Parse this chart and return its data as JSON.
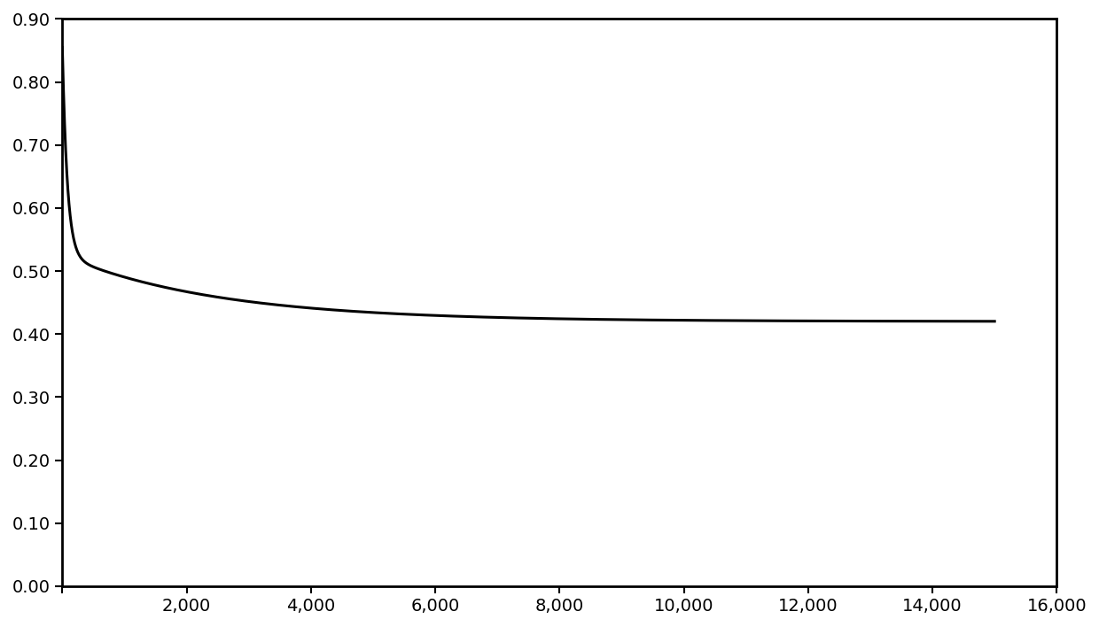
{
  "title": "",
  "xlabel": "",
  "ylabel": "",
  "xlim": [
    0,
    16000
  ],
  "ylim": [
    0.0,
    0.9
  ],
  "x_ticks": [
    0,
    2000,
    4000,
    6000,
    8000,
    10000,
    12000,
    14000,
    16000
  ],
  "x_tick_labels": [
    "",
    "2,000",
    "4,000",
    "6,000",
    "8,000",
    "10,000",
    "12,000",
    "14,000",
    "16,000"
  ],
  "y_ticks": [
    0.0,
    0.1,
    0.2,
    0.3,
    0.4,
    0.5,
    0.6,
    0.7,
    0.8,
    0.9
  ],
  "line_color": "#000000",
  "line_width": 2.2,
  "background_color": "#ffffff",
  "curve_asymptote": 0.42,
  "curve_end_x": 15000,
  "A1": 0.33,
  "tau1": 80,
  "A2": 0.105,
  "tau2": 2500
}
